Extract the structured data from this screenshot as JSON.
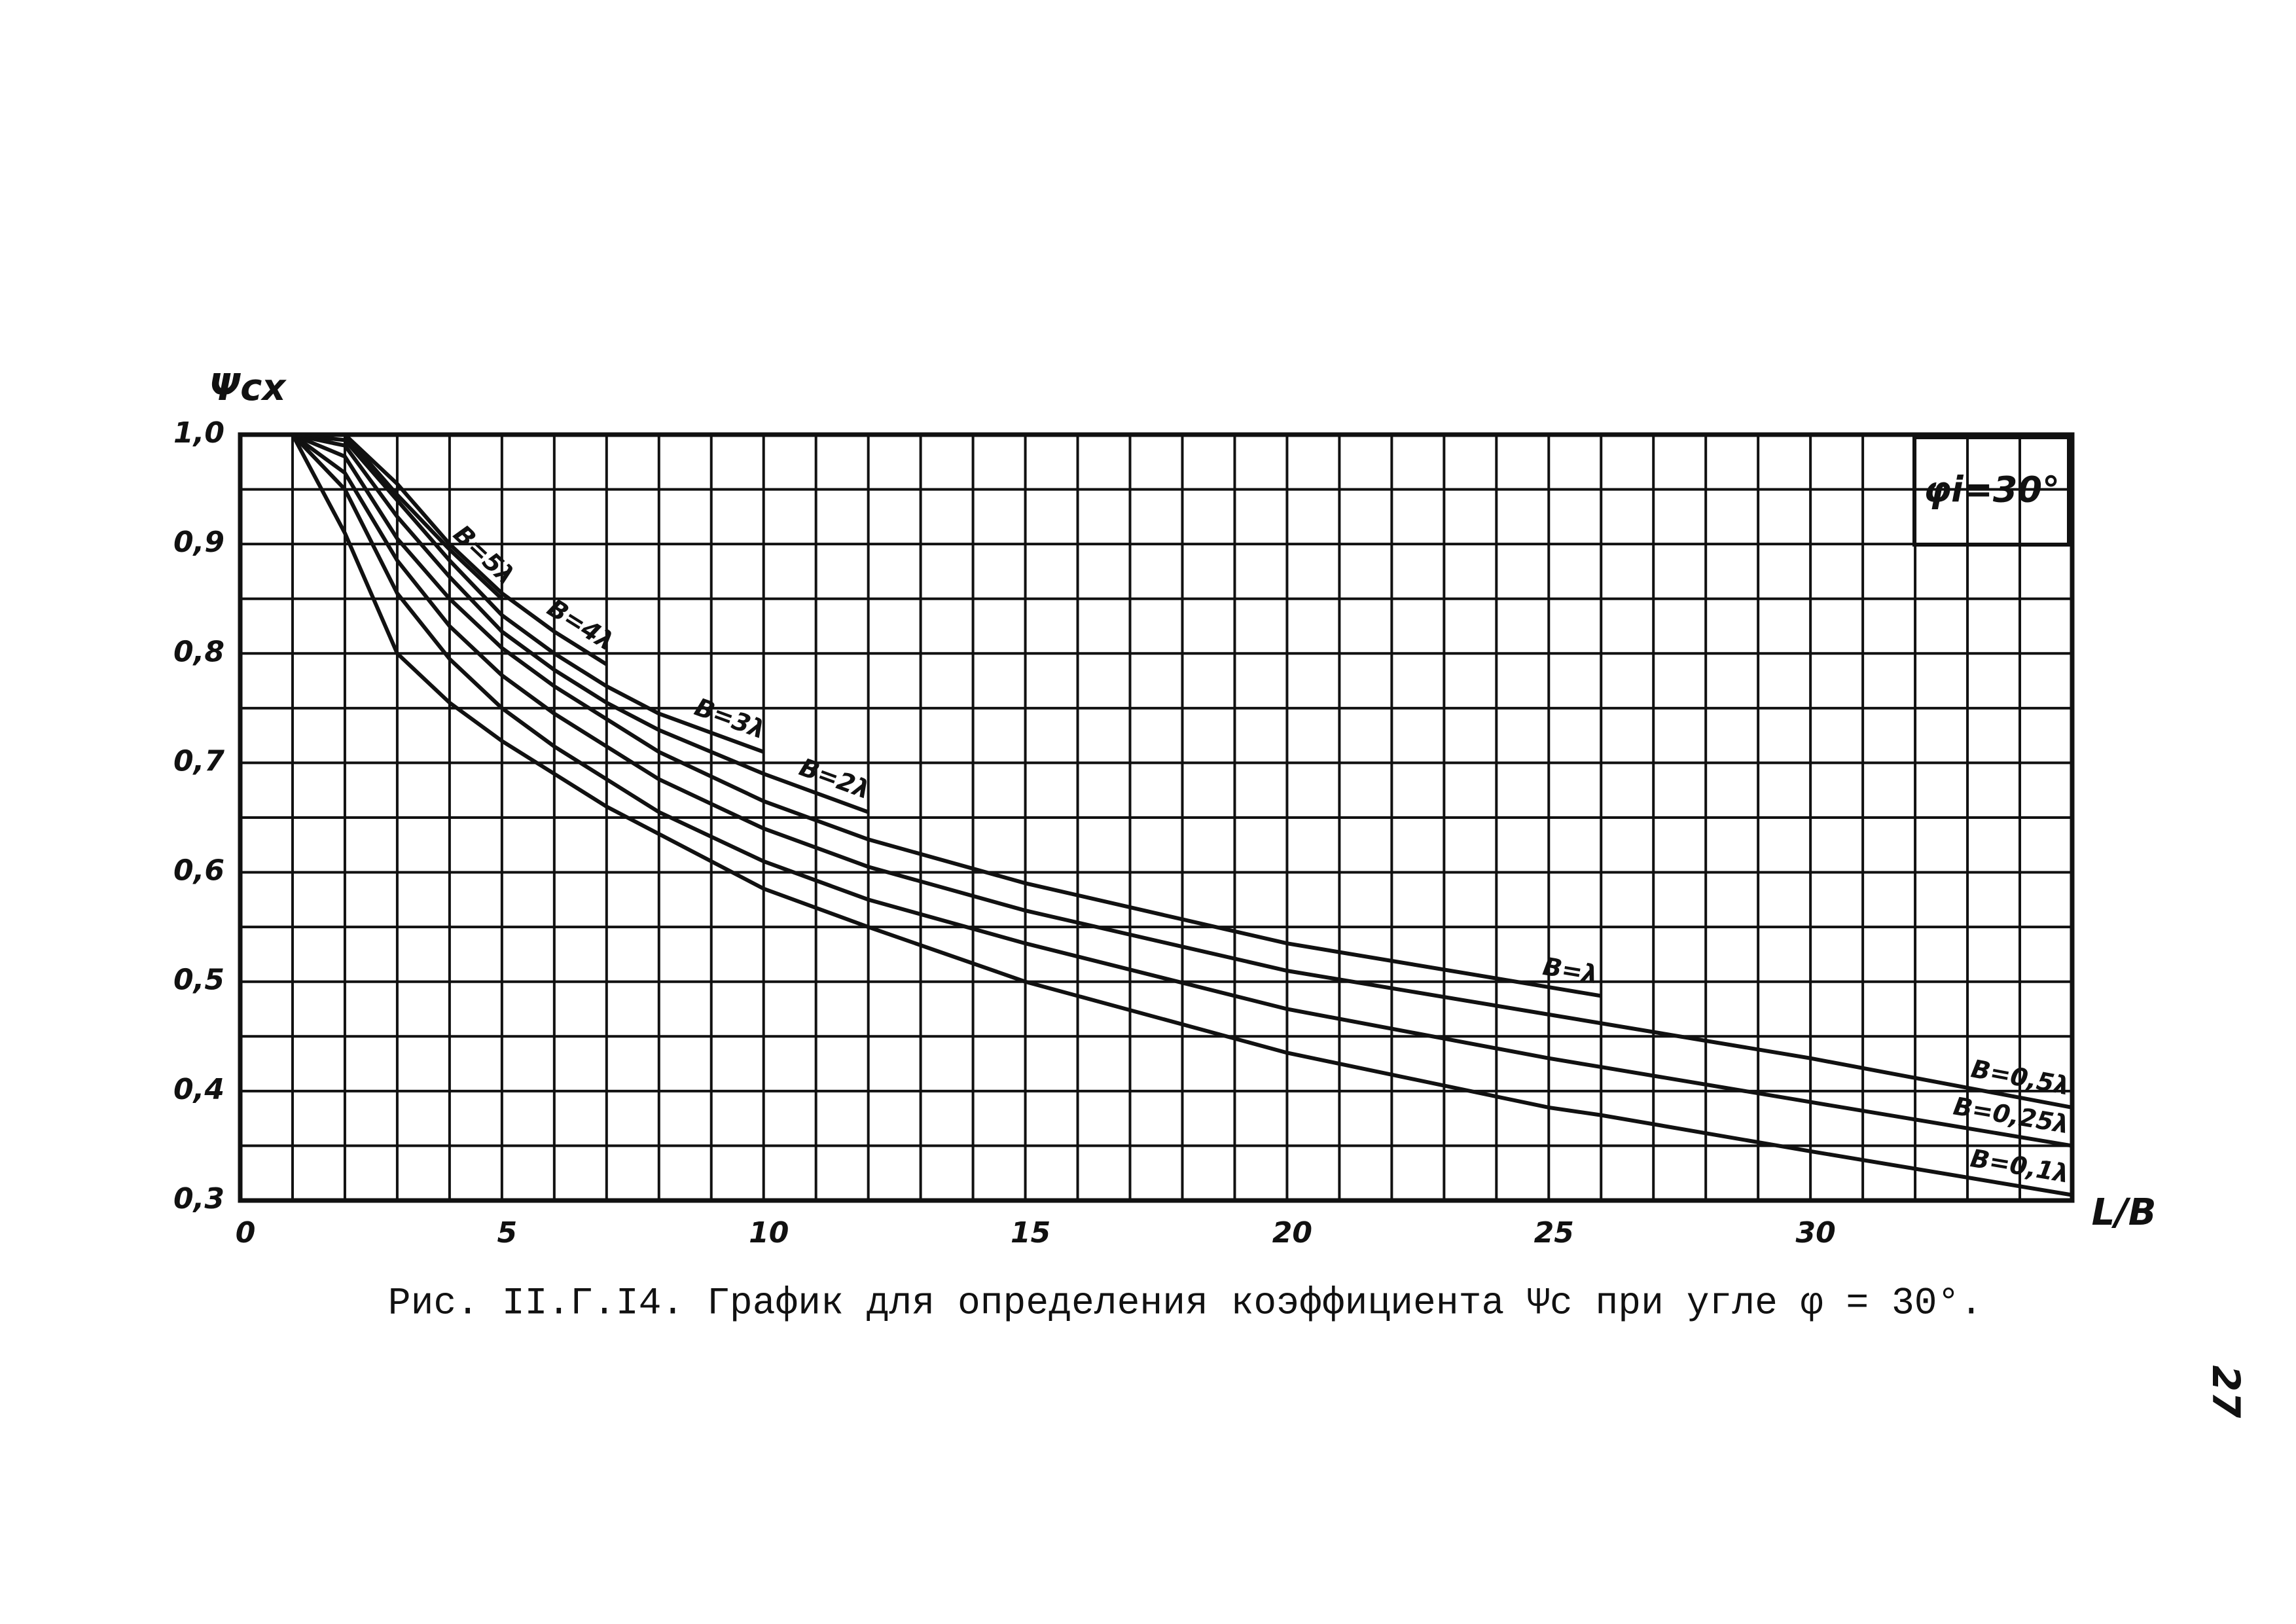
{
  "chart_data": {
    "type": "line",
    "title": "Рис. II.Г.I4. График для определения коэффициента Ψc при угле φ = 30°.",
    "y_label": "Ψcx",
    "x_label": "L/B",
    "annotation": "φi=30°",
    "page_number": "27",
    "x": [
      1,
      2,
      3,
      4,
      5,
      6,
      7,
      8,
      10,
      12,
      15,
      20,
      25,
      26,
      30,
      35
    ],
    "series": [
      {
        "name": "B=5λ",
        "color": "#111111",
        "values": [
          1.0,
          1.0,
          0.945,
          0.895,
          0.85,
          null,
          null,
          null,
          null,
          null,
          null,
          null,
          null,
          null,
          null,
          null
        ]
      },
      {
        "name": "B=4λ",
        "color": "#111111",
        "values": [
          1.0,
          1.0,
          0.955,
          0.9,
          0.855,
          0.82,
          0.79,
          null,
          null,
          null,
          null,
          null,
          null,
          null,
          null,
          null
        ]
      },
      {
        "name": "B=3λ",
        "color": "#111111",
        "values": [
          1.0,
          0.995,
          0.94,
          0.885,
          0.835,
          0.8,
          0.77,
          0.745,
          0.71,
          null,
          null,
          null,
          null,
          null,
          null,
          null
        ]
      },
      {
        "name": "B=2λ",
        "color": "#111111",
        "values": [
          1.0,
          0.99,
          0.925,
          0.87,
          0.82,
          0.785,
          0.755,
          0.73,
          0.69,
          0.655,
          null,
          null,
          null,
          null,
          null,
          null
        ]
      },
      {
        "name": "B=λ",
        "color": "#111111",
        "values": [
          1.0,
          0.98,
          0.905,
          0.85,
          0.805,
          0.77,
          0.74,
          0.71,
          0.665,
          0.63,
          0.59,
          0.535,
          0.495,
          0.487,
          null,
          null
        ]
      },
      {
        "name": "B=0,5λ",
        "color": "#111111",
        "values": [
          1.0,
          0.965,
          0.885,
          0.825,
          0.78,
          0.745,
          0.715,
          0.685,
          0.64,
          0.605,
          0.565,
          0.51,
          0.47,
          0.462,
          0.43,
          0.385
        ]
      },
      {
        "name": "B=0,25λ",
        "color": "#111111",
        "values": [
          1.0,
          0.95,
          0.855,
          0.795,
          0.75,
          0.715,
          0.685,
          0.655,
          0.61,
          0.575,
          0.535,
          0.475,
          0.43,
          0.422,
          0.39,
          0.35
        ]
      },
      {
        "name": "B=0,1λ",
        "color": "#111111",
        "values": [
          1.0,
          0.91,
          0.8,
          0.755,
          0.72,
          0.69,
          0.66,
          0.635,
          0.585,
          0.55,
          0.5,
          0.435,
          0.385,
          0.378,
          0.345,
          0.305
        ]
      }
    ],
    "xlim": [
      0,
      35
    ],
    "xticks": [
      0,
      5,
      10,
      15,
      20,
      25,
      30
    ],
    "ylim": [
      0.3,
      1.0
    ],
    "yticks": [
      {
        "value": 0.3,
        "label": "0,3"
      },
      {
        "value": 0.4,
        "label": "0,4"
      },
      {
        "value": 0.5,
        "label": "0,5"
      },
      {
        "value": 0.6,
        "label": "0,6"
      },
      {
        "value": 0.7,
        "label": "0,7"
      },
      {
        "value": 0.8,
        "label": "0,8"
      },
      {
        "value": 0.9,
        "label": "0,9"
      },
      {
        "value": 1.0,
        "label": "1,0"
      }
    ],
    "grid": true
  }
}
